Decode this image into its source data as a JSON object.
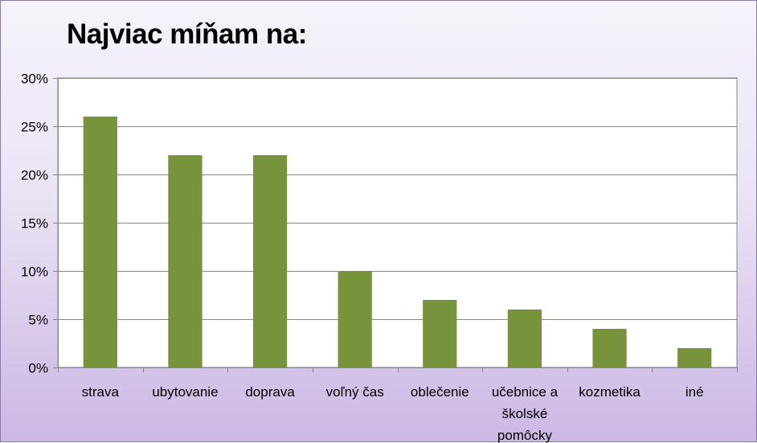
{
  "chart_data": {
    "type": "bar",
    "title": "Najviac míňam na:",
    "categories": [
      "strava",
      "ubytovanie",
      "doprava",
      "voľný čas",
      "oblečenie",
      "učebnice a školské pomôcky",
      "kozmetika",
      "iné"
    ],
    "category_lines": [
      [
        "strava"
      ],
      [
        "ubytovanie"
      ],
      [
        "doprava"
      ],
      [
        "voľný čas"
      ],
      [
        "oblečenie"
      ],
      [
        "učebnice a",
        "školské",
        "pomôcky"
      ],
      [
        "kozmetika"
      ],
      [
        "iné"
      ]
    ],
    "series": [
      {
        "values": [
          26,
          22,
          22,
          10,
          7,
          6,
          4,
          2
        ]
      }
    ],
    "ylim": [
      0,
      30
    ],
    "yticks": [
      0,
      5,
      10,
      15,
      20,
      25,
      30
    ],
    "ytick_labels": [
      "0%",
      "5%",
      "10%",
      "15%",
      "20%",
      "25%",
      "30%"
    ],
    "xlabel": "",
    "ylabel": "",
    "grid": true,
    "legend": "none",
    "colors": {
      "bar": "#77933c",
      "grid": "#868686",
      "plot_bg": "#ffffff",
      "bg_top": "#f6f3fb",
      "bg_bottom": "#ccb9e4"
    }
  }
}
